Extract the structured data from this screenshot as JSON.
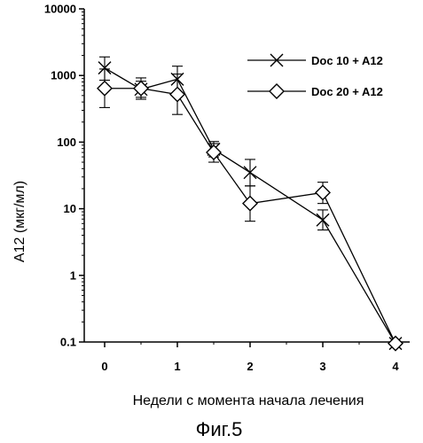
{
  "chart_data": {
    "type": "line",
    "title": "",
    "xlabel": "Недели с момента начала лечения",
    "ylabel": "A12 (мкг/мл)",
    "yscale": "log",
    "ylim": [
      0.1,
      10000
    ],
    "xlim": [
      -0.3,
      4.2
    ],
    "x_ticks": [
      0,
      1,
      2,
      3,
      4
    ],
    "x_tick_labels": [
      "0",
      "1",
      "2",
      "3",
      "4"
    ],
    "y_ticks": [
      0.1,
      1,
      10,
      100,
      1000,
      10000
    ],
    "y_tick_labels": [
      "0.1",
      "1",
      "10",
      "100",
      "1000",
      "10000"
    ],
    "grid": false,
    "legend_position": "top-right",
    "series": [
      {
        "name": "Doc 10 + A12",
        "marker": "x",
        "points": [
          {
            "x": 0,
            "y": 1300,
            "lo": 850,
            "hi": 1900
          },
          {
            "x": 0.5,
            "y": 620,
            "lo": 470,
            "hi": 820
          },
          {
            "x": 1,
            "y": 880,
            "lo": 560,
            "hi": 1380
          },
          {
            "x": 1.5,
            "y": 78,
            "lo": 60,
            "hi": 102
          },
          {
            "x": 2,
            "y": 35,
            "lo": 22,
            "hi": 55
          },
          {
            "x": 3,
            "y": 6.8,
            "lo": 4.8,
            "hi": 9.6
          },
          {
            "x": 4,
            "y": 0.095,
            "lo": 0.09,
            "hi": 0.1
          }
        ]
      },
      {
        "name": "Doc 20 + A12",
        "marker": "diamond",
        "points": [
          {
            "x": 0,
            "y": 640,
            "lo": 330,
            "hi": 1250
          },
          {
            "x": 0.5,
            "y": 640,
            "lo": 440,
            "hi": 920
          },
          {
            "x": 1,
            "y": 520,
            "lo": 260,
            "hi": 1050
          },
          {
            "x": 1.5,
            "y": 70,
            "lo": 50,
            "hi": 95
          },
          {
            "x": 2,
            "y": 12,
            "lo": 6.5,
            "hi": 22
          },
          {
            "x": 3,
            "y": 17.5,
            "lo": 12,
            "hi": 25
          },
          {
            "x": 4,
            "y": 0.095,
            "lo": 0.09,
            "hi": 0.1
          }
        ]
      }
    ]
  },
  "caption": "Фиг.5"
}
